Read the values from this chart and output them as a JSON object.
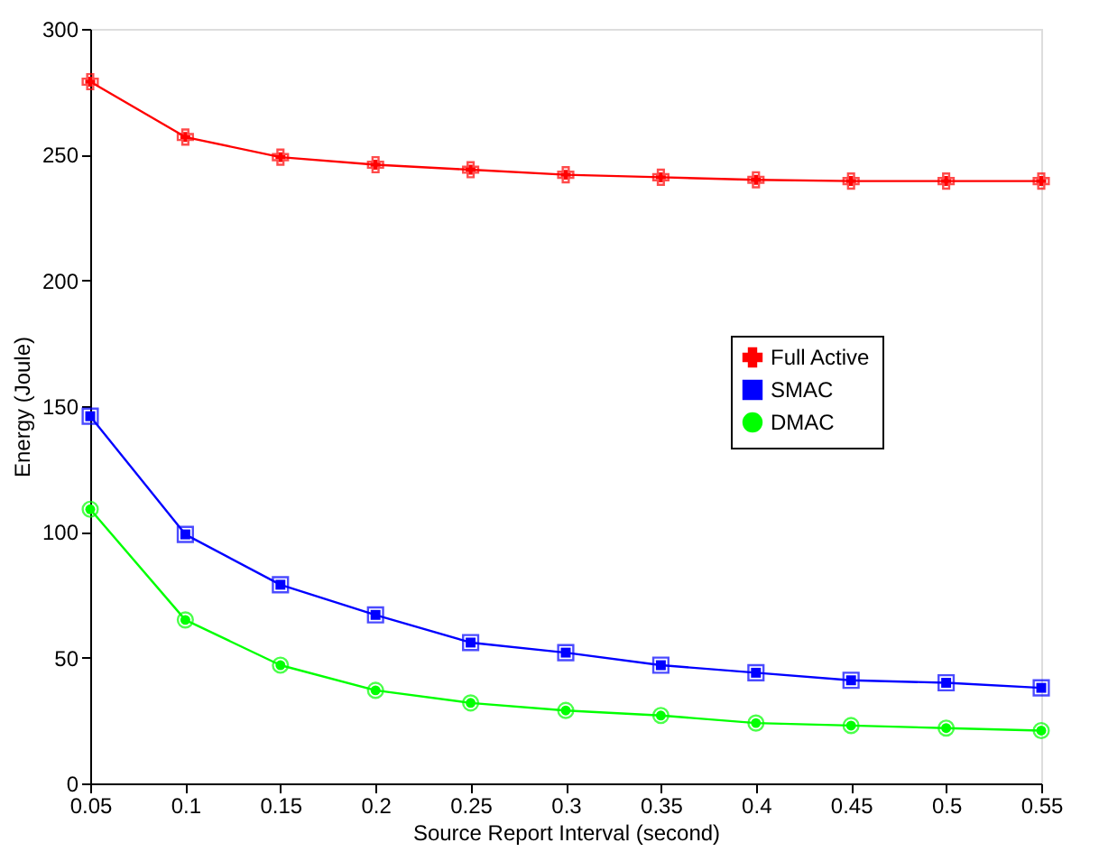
{
  "chart_data": {
    "type": "line",
    "xlabel": "Source Report Interval (second)",
    "ylabel": "Energy (Joule)",
    "x": [
      0.05,
      0.1,
      0.15,
      0.2,
      0.25,
      0.3,
      0.35,
      0.4,
      0.45,
      0.5,
      0.55
    ],
    "series": [
      {
        "name": "Full Active",
        "color": "#ff0000",
        "marker": "cross",
        "values": [
          279,
          257,
          249,
          246,
          244,
          242,
          241,
          240,
          239.5,
          239.5,
          239.5
        ]
      },
      {
        "name": "SMAC",
        "color": "#0000ff",
        "marker": "square",
        "values": [
          146,
          99,
          79,
          67,
          56,
          52,
          47,
          44,
          41,
          40,
          38
        ]
      },
      {
        "name": "DMAC",
        "color": "#00ff00",
        "marker": "circle",
        "values": [
          109,
          65,
          47,
          37,
          32,
          29,
          27,
          24,
          23,
          22,
          21
        ]
      }
    ],
    "xlim": [
      0.05,
      0.55
    ],
    "xticks": [
      0.05,
      0.1,
      0.15,
      0.2,
      0.25,
      0.3,
      0.35,
      0.4,
      0.45,
      0.5,
      0.55
    ],
    "ylim": [
      0,
      300
    ],
    "yticks": [
      0,
      50,
      100,
      150,
      200,
      250,
      300
    ],
    "grid": false,
    "legend": "right",
    "line_style": "solid"
  }
}
